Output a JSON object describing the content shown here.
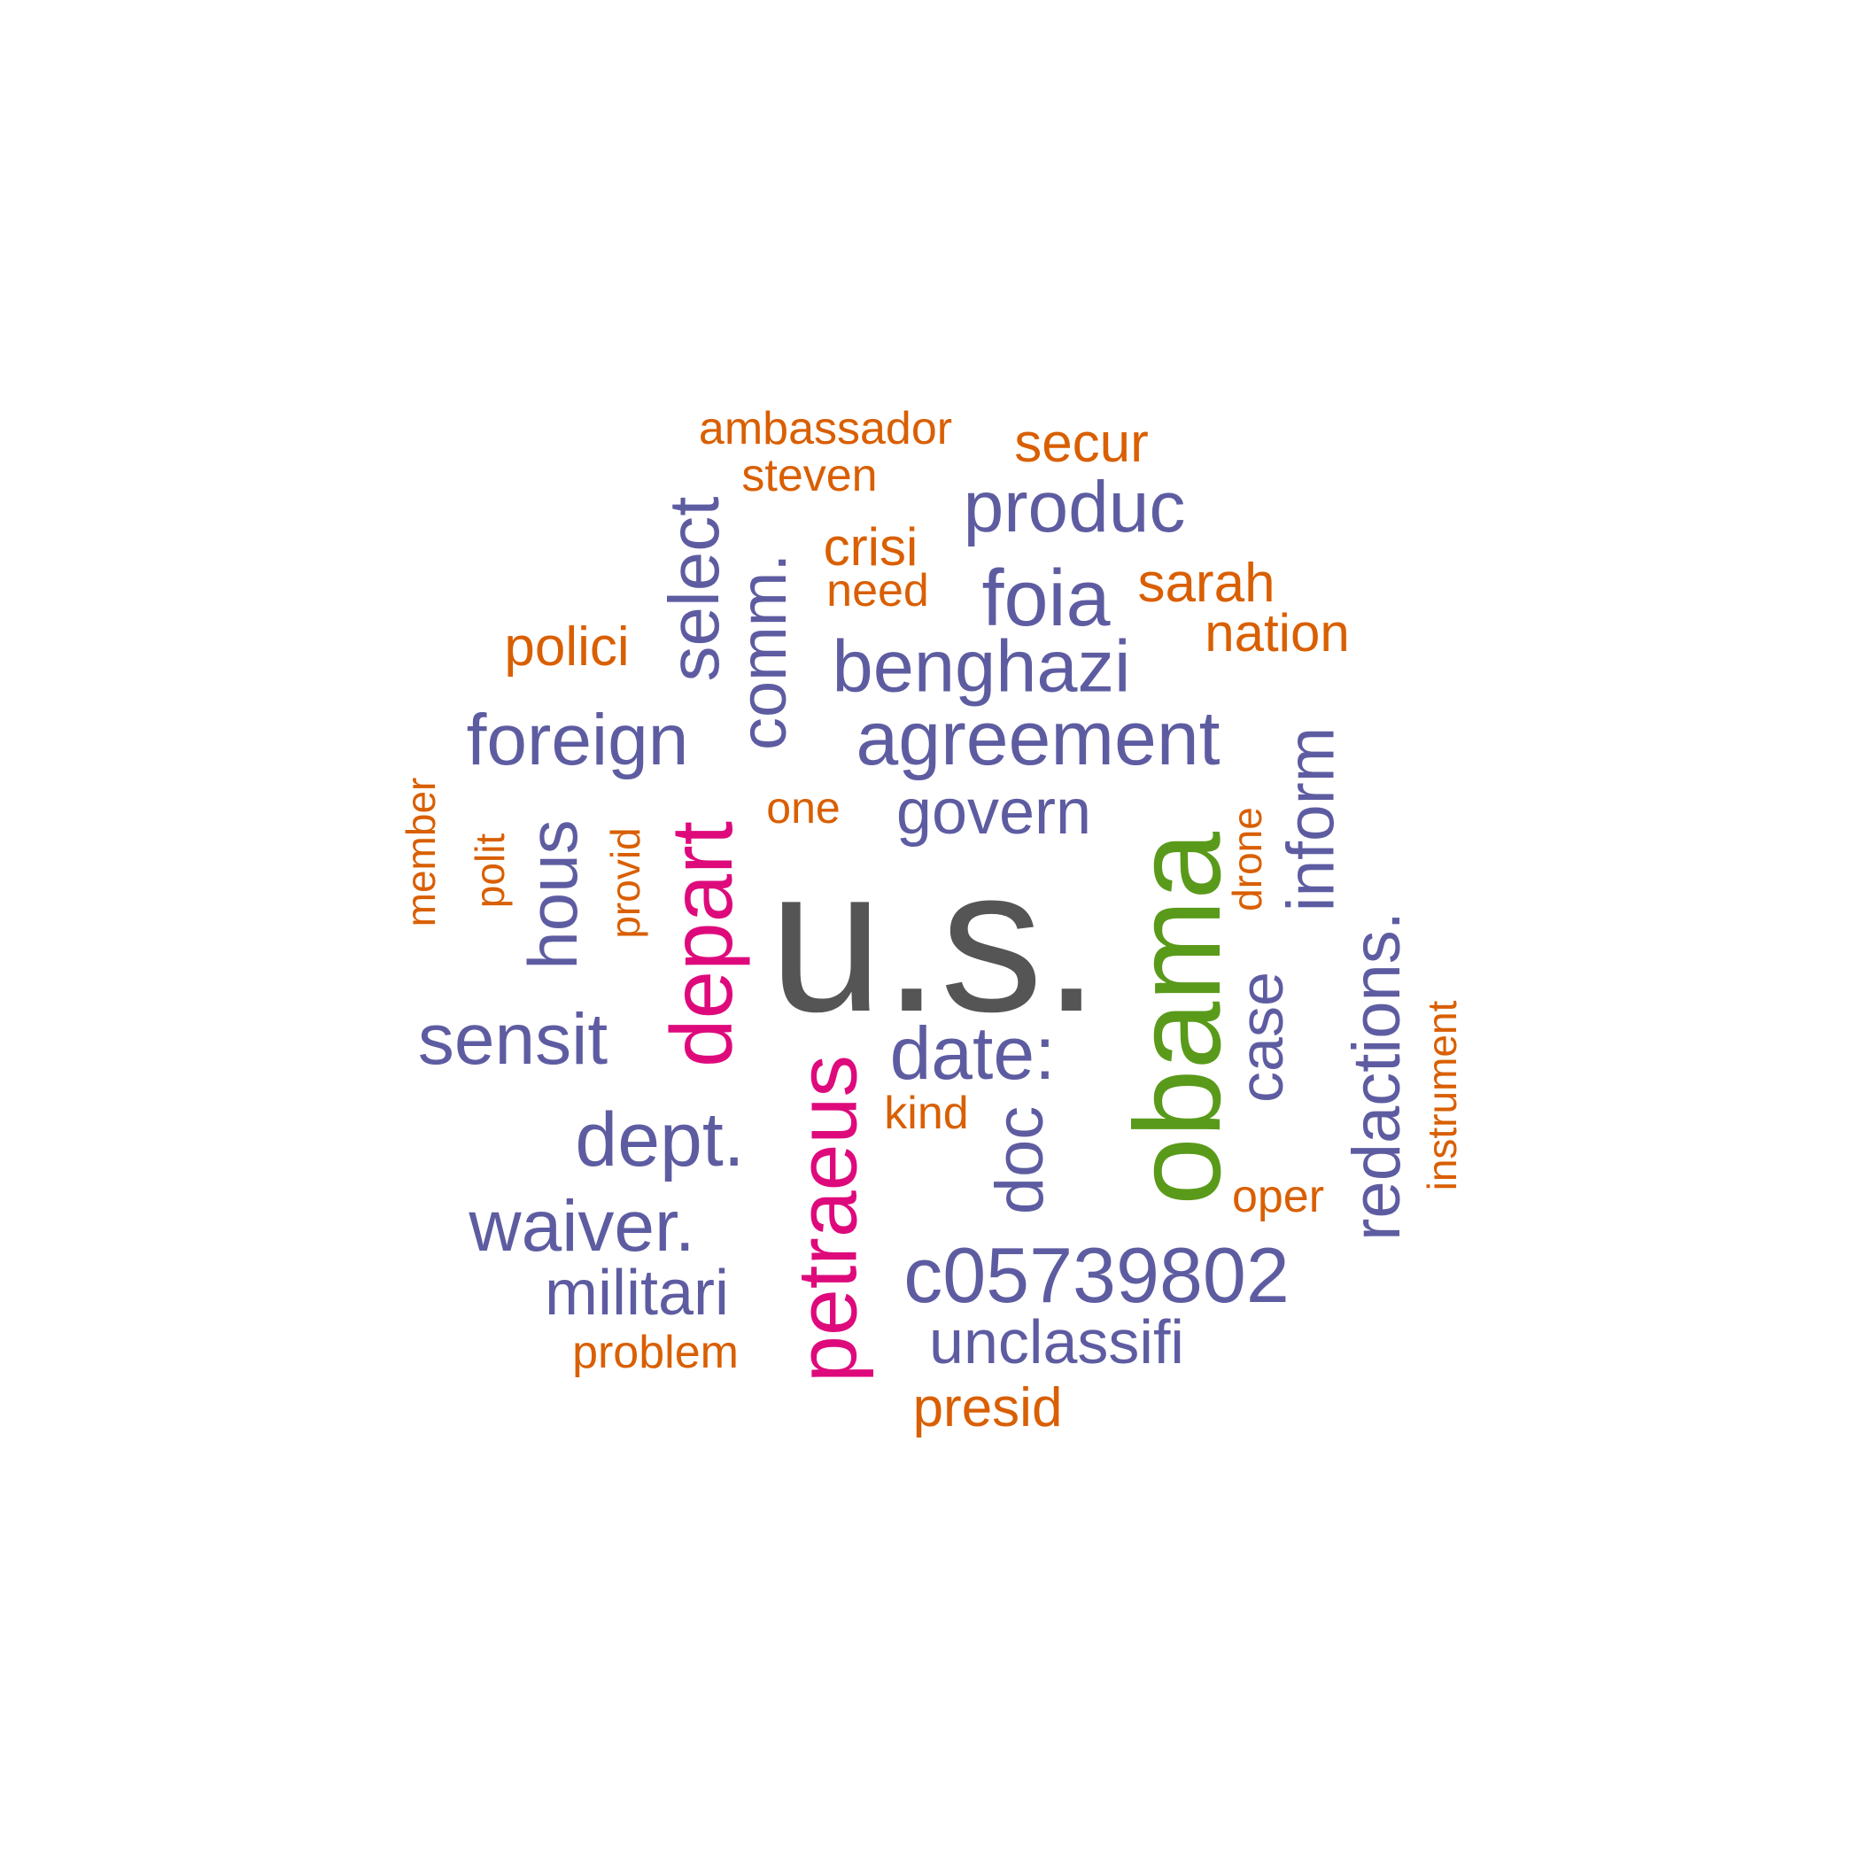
{
  "palette": {
    "orange": "#d95f02",
    "purple": "#5e5ca1",
    "magenta": "#de0a7c",
    "green": "#5a9a1b",
    "gray": "#555555"
  },
  "words": [
    {
      "text": "u.s.",
      "color": "gray"
    },
    {
      "text": "obama",
      "color": "green"
    },
    {
      "text": "depart",
      "color": "magenta"
    },
    {
      "text": "petraeus",
      "color": "magenta"
    },
    {
      "text": "agreement",
      "color": "purple"
    },
    {
      "text": "benghazi",
      "color": "purple"
    },
    {
      "text": "foreign",
      "color": "purple"
    },
    {
      "text": "select",
      "color": "purple"
    },
    {
      "text": "comm.",
      "color": "purple"
    },
    {
      "text": "produc",
      "color": "purple"
    },
    {
      "text": "foia",
      "color": "purple"
    },
    {
      "text": "govern",
      "color": "purple"
    },
    {
      "text": "hous",
      "color": "purple"
    },
    {
      "text": "inform",
      "color": "purple"
    },
    {
      "text": "redactions.",
      "color": "purple"
    },
    {
      "text": "case",
      "color": "purple"
    },
    {
      "text": "sensit",
      "color": "purple"
    },
    {
      "text": "date:",
      "color": "purple"
    },
    {
      "text": "dept.",
      "color": "purple"
    },
    {
      "text": "doc",
      "color": "purple"
    },
    {
      "text": "waiver.",
      "color": "purple"
    },
    {
      "text": "militari",
      "color": "purple"
    },
    {
      "text": "c05739802",
      "color": "purple"
    },
    {
      "text": "unclassifi",
      "color": "purple"
    },
    {
      "text": "ambassador",
      "color": "orange"
    },
    {
      "text": "secur",
      "color": "orange"
    },
    {
      "text": "steven",
      "color": "orange"
    },
    {
      "text": "crisi",
      "color": "orange"
    },
    {
      "text": "need",
      "color": "orange"
    },
    {
      "text": "sarah",
      "color": "orange"
    },
    {
      "text": "nation",
      "color": "orange"
    },
    {
      "text": "polici",
      "color": "orange"
    },
    {
      "text": "one",
      "color": "orange"
    },
    {
      "text": "member",
      "color": "orange"
    },
    {
      "text": "polit",
      "color": "orange"
    },
    {
      "text": "provid",
      "color": "orange"
    },
    {
      "text": "drone",
      "color": "orange"
    },
    {
      "text": "kind",
      "color": "orange"
    },
    {
      "text": "oper",
      "color": "orange"
    },
    {
      "text": "instrument",
      "color": "orange"
    },
    {
      "text": "problem",
      "color": "orange"
    },
    {
      "text": "presid",
      "color": "orange"
    }
  ]
}
